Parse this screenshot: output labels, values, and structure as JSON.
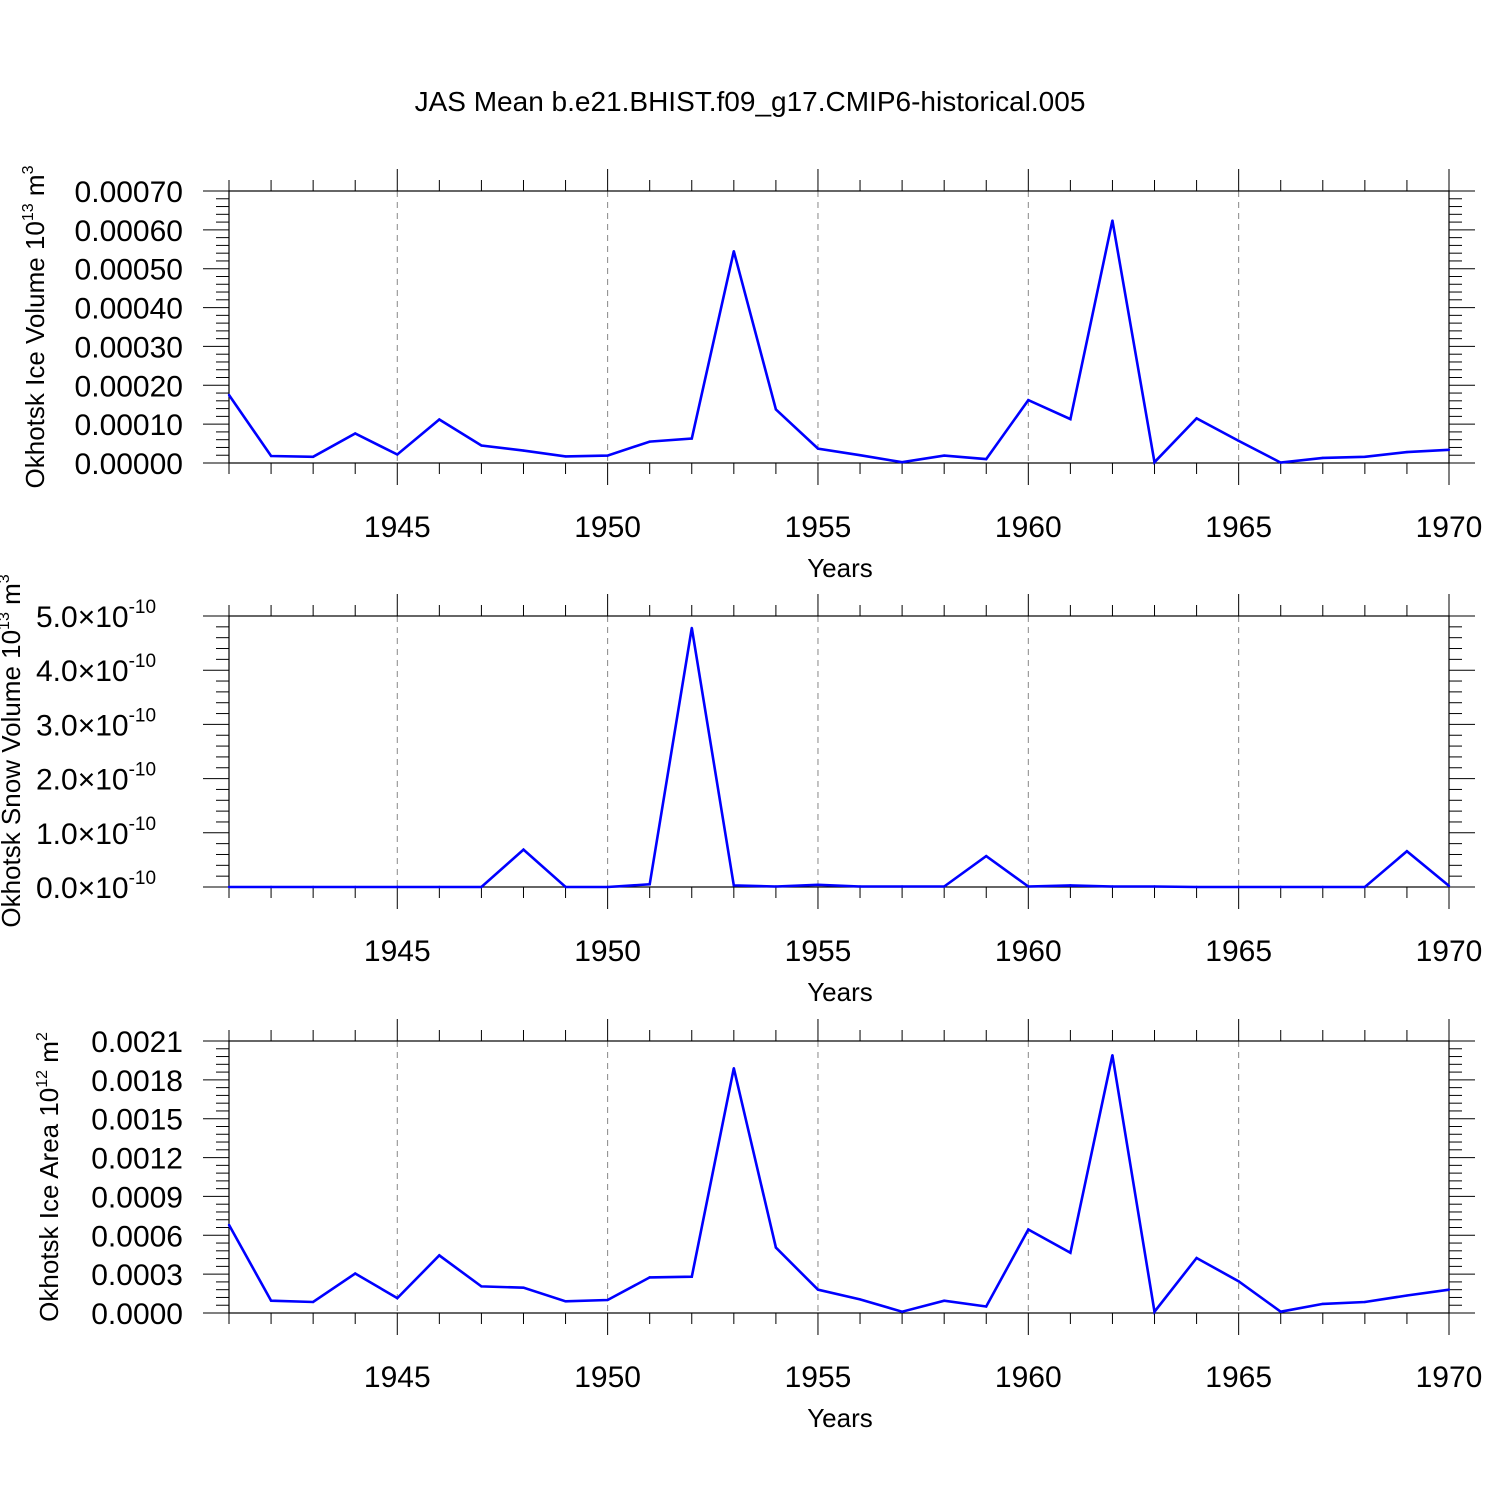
{
  "title": "JAS Mean b.e21.BHIST.f09_g17.CMIP6-historical.005",
  "line_color": "#0000ff",
  "chart_data": [
    {
      "type": "line",
      "title": "",
      "xlabel": "Years",
      "ylabel": "Okhotsk Ice Volume 10^13 m^3",
      "ylabel_parts": {
        "base": "Okhotsk Ice Volume 10",
        "exp1": "13",
        "mid": " m",
        "exp2": "3"
      },
      "xlim": [
        1941,
        1970
      ],
      "ylim": [
        0,
        0.0007
      ],
      "xticks": [
        1945,
        1950,
        1955,
        1960,
        1965,
        1970
      ],
      "ytick_labels": [
        "0.00000",
        "0.00010",
        "0.00020",
        "0.00030",
        "0.00040",
        "0.00050",
        "0.00060",
        "0.00070"
      ],
      "ytick_values": [
        0,
        0.0001,
        0.0002,
        0.0003,
        0.0004,
        0.0005,
        0.0006,
        0.0007
      ],
      "x": [
        1941,
        1942,
        1943,
        1944,
        1945,
        1946,
        1947,
        1948,
        1949,
        1950,
        1951,
        1952,
        1953,
        1954,
        1955,
        1956,
        1957,
        1958,
        1959,
        1960,
        1961,
        1962,
        1963,
        1964,
        1965,
        1966,
        1967,
        1968,
        1969,
        1970
      ],
      "series": [
        {
          "name": "Okhotsk Ice Volume",
          "values": [
            0.000175,
            1.8e-05,
            1.6e-05,
            7.6e-05,
            2.2e-05,
            0.000112,
            4.5e-05,
            3.2e-05,
            1.7e-05,
            1.9e-05,
            5.5e-05,
            6.3e-05,
            0.000545,
            0.000138,
            3.7e-05,
            2e-05,
            2e-06,
            1.9e-05,
            1e-05,
            0.000162,
            0.000113,
            0.000624,
            2e-06,
            0.000115,
            5.7e-05,
            1e-06,
            1.3e-05,
            1.6e-05,
            2.8e-05,
            3.4e-05
          ]
        }
      ]
    },
    {
      "type": "line",
      "title": "",
      "xlabel": "Years",
      "ylabel": "Okhotsk Snow Volume 10^13 m^3",
      "ylabel_parts": {
        "base": "Okhotsk Snow Volume 10",
        "exp1": "13",
        "mid": " m",
        "exp2": "3"
      },
      "xlim": [
        1941,
        1970
      ],
      "ylim": [
        0,
        5e-10
      ],
      "xticks": [
        1945,
        1950,
        1955,
        1960,
        1965,
        1970
      ],
      "ytick_mantissas": [
        "0.0",
        "1.0",
        "2.0",
        "3.0",
        "4.0",
        "5.0"
      ],
      "ytick_times": "×10",
      "ytick_exponent": "-10",
      "ytick_values": [
        0,
        1e-10,
        2e-10,
        3e-10,
        4e-10,
        5e-10
      ],
      "x": [
        1941,
        1942,
        1943,
        1944,
        1945,
        1946,
        1947,
        1948,
        1949,
        1950,
        1951,
        1952,
        1953,
        1954,
        1955,
        1956,
        1957,
        1958,
        1959,
        1960,
        1961,
        1962,
        1963,
        1964,
        1965,
        1966,
        1967,
        1968,
        1969,
        1970
      ],
      "series": [
        {
          "name": "Okhotsk Snow Volume",
          "values": [
            0,
            0,
            0,
            0,
            0,
            0,
            0,
            6.9e-11,
            0,
            0,
            5e-12,
            4.78e-10,
            3e-12,
            1e-12,
            4e-12,
            1e-12,
            1e-12,
            1e-12,
            5.7e-11,
            1e-12,
            3e-12,
            1e-12,
            1e-12,
            0,
            0,
            0,
            0,
            0,
            6.6e-11,
            2e-12
          ]
        }
      ]
    },
    {
      "type": "line",
      "title": "",
      "xlabel": "Years",
      "ylabel": "Okhotsk Ice Area 10^12 m^2",
      "ylabel_parts": {
        "base": "Okhotsk Ice Area 10",
        "exp1": "12",
        "mid": " m",
        "exp2": "2"
      },
      "xlim": [
        1941,
        1970
      ],
      "ylim": [
        0,
        0.0021
      ],
      "xticks": [
        1945,
        1950,
        1955,
        1960,
        1965,
        1970
      ],
      "ytick_labels": [
        "0.0000",
        "0.0003",
        "0.0006",
        "0.0009",
        "0.0012",
        "0.0015",
        "0.0018",
        "0.0021"
      ],
      "ytick_values": [
        0,
        0.0003,
        0.0006,
        0.0009,
        0.0012,
        0.0015,
        0.0018,
        0.0021
      ],
      "x": [
        1941,
        1942,
        1943,
        1944,
        1945,
        1946,
        1947,
        1948,
        1949,
        1950,
        1951,
        1952,
        1953,
        1954,
        1955,
        1956,
        1957,
        1958,
        1959,
        1960,
        1961,
        1962,
        1963,
        1964,
        1965,
        1966,
        1967,
        1968,
        1969,
        1970
      ],
      "series": [
        {
          "name": "Okhotsk Ice Area",
          "values": [
            0.00068,
            9.5e-05,
            8.5e-05,
            0.000305,
            0.000115,
            0.000445,
            0.000205,
            0.000195,
            9e-05,
            0.0001,
            0.000275,
            0.00028,
            0.00189,
            0.000505,
            0.00018,
            0.000105,
            1e-05,
            9.5e-05,
            5e-05,
            0.000645,
            0.000465,
            0.00199,
            1e-05,
            0.000425,
            0.000245,
            1e-05,
            7e-05,
            8.5e-05,
            0.000135,
            0.00018
          ]
        }
      ]
    }
  ]
}
